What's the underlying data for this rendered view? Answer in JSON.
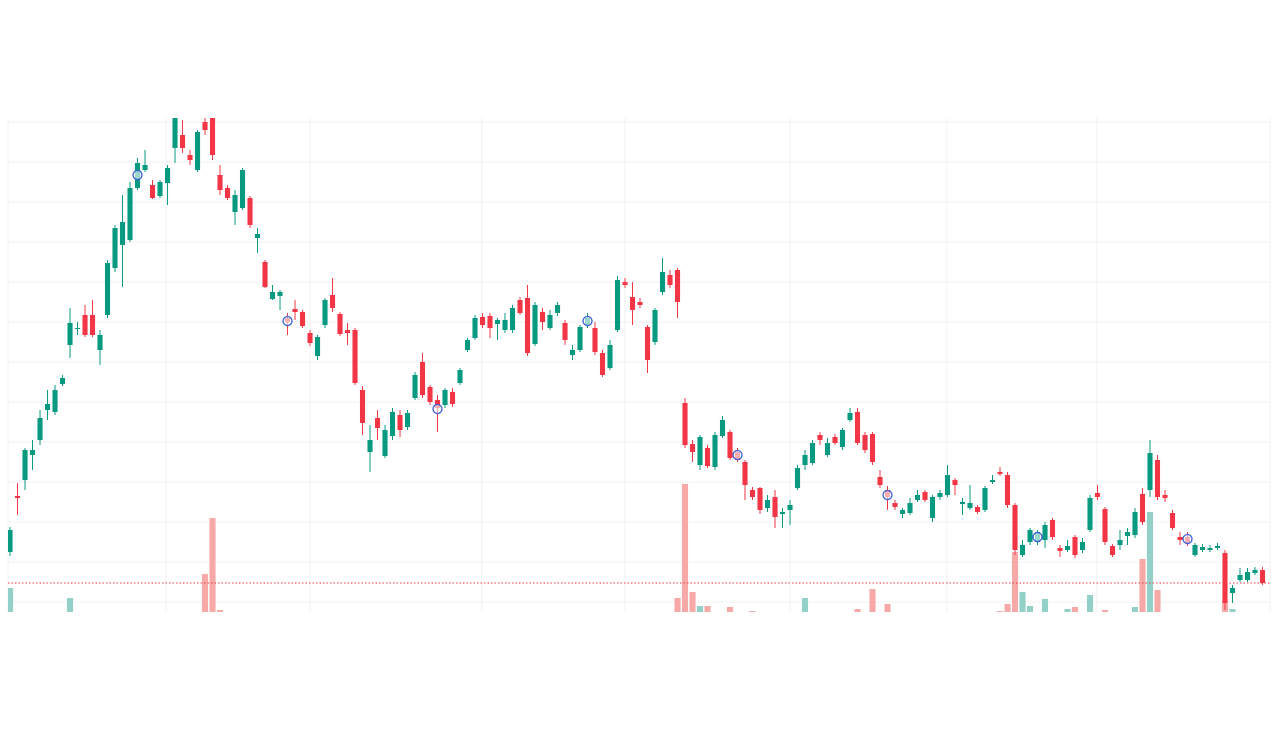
{
  "chart_data": {
    "type": "candlestick",
    "up_color": "#089981",
    "down_color": "#f23645",
    "volume_up_color": "#93d1c8",
    "volume_down_color": "#f7a9a7",
    "marker_color": "#3a5fd9",
    "price_line": true,
    "grid": true,
    "xlim": [
      -0.27,
      168
    ],
    "ylim": [
      90,
      584
    ],
    "yticks": [
      100,
      140,
      180,
      220,
      260,
      300,
      340,
      380,
      420,
      460,
      500,
      540,
      580
    ],
    "xticks": [
      20.8,
      40,
      62.9,
      82,
      104,
      124.9,
      144.9
    ],
    "volume_ylim": [
      0,
      494
    ],
    "open": [
      150,
      206,
      222,
      247,
      262,
      292,
      290,
      318,
      357,
      373,
      387,
      387,
      352,
      387,
      434,
      457,
      462,
      514,
      532,
      517,
      506,
      519,
      554,
      567,
      547,
      532,
      580,
      584,
      527,
      514,
      490,
      494,
      504,
      464,
      440,
      403,
      406,
      384,
      393,
      390,
      369,
      346,
      377,
      407,
      388,
      372,
      372,
      312,
      250,
      284,
      246,
      266,
      287,
      275,
      304,
      340,
      315,
      302,
      297,
      310,
      319,
      352,
      364,
      385,
      386,
      378,
      372,
      372,
      402,
      404,
      358,
      390,
      374,
      389,
      379,
      347,
      352,
      377,
      374,
      349,
      334,
      372,
      420,
      405,
      400,
      375,
      360,
      410,
      427,
      432,
      299,
      258,
      237,
      254,
      235,
      266,
      270,
      250,
      240,
      212,
      214,
      194,
      205,
      188,
      192,
      214,
      237,
      239,
      267,
      247,
      265,
      255,
      282,
      290,
      267,
      268,
      225,
      212,
      199,
      188,
      189,
      202,
      210,
      184,
      205,
      207,
      222,
      198,
      194,
      195,
      192,
      220,
      230,
      227,
      197,
      147,
      160,
      160,
      162,
      182,
      154,
      152,
      165,
      152,
      172,
      209,
      193,
      156,
      157,
      166,
      167,
      208,
      212,
      242,
      207,
      189,
      165,
      165,
      147,
      152,
      152,
      154,
      149,
      109,
      122,
      122,
      129,
      132
    ],
    "high": [
      175,
      219,
      254,
      262,
      292,
      312,
      317,
      327,
      394,
      380,
      397,
      402,
      372,
      442,
      477,
      507,
      520,
      544,
      552,
      522,
      522,
      537,
      590,
      582,
      552,
      572,
      584,
      592,
      537,
      517,
      512,
      534,
      506,
      474,
      442,
      417,
      412,
      389,
      402,
      392,
      372,
      367,
      404,
      424,
      390,
      379,
      374,
      316,
      277,
      292,
      277,
      294,
      292,
      292,
      330,
      349,
      317,
      307,
      314,
      314,
      334,
      364,
      387,
      389,
      389,
      384,
      389,
      397,
      405,
      417,
      400,
      394,
      392,
      400,
      382,
      357,
      377,
      389,
      380,
      352,
      362,
      426,
      424,
      420,
      404,
      377,
      394,
      444,
      432,
      434,
      304,
      262,
      267,
      257,
      270,
      286,
      272,
      254,
      242,
      215,
      215,
      207,
      212,
      194,
      202,
      237,
      252,
      262,
      270,
      264,
      268,
      274,
      294,
      294,
      270,
      270,
      232,
      216,
      202,
      194,
      204,
      212,
      212,
      207,
      212,
      237,
      224,
      204,
      217,
      197,
      216,
      227,
      235,
      230,
      199,
      162,
      174,
      172,
      180,
      184,
      157,
      162,
      167,
      164,
      207,
      217,
      195,
      158,
      172,
      174,
      194,
      214,
      262,
      247,
      212,
      192,
      170,
      170,
      159,
      158,
      157,
      159,
      152,
      117,
      134,
      134,
      135,
      135
    ],
    "low": [
      146,
      187,
      212,
      232,
      257,
      282,
      287,
      316,
      344,
      367,
      365,
      365,
      337,
      384,
      430,
      415,
      460,
      512,
      530,
      503,
      504,
      497,
      539,
      549,
      537,
      530,
      567,
      542,
      507,
      502,
      477,
      492,
      474,
      449,
      414,
      402,
      392,
      367,
      382,
      374,
      356,
      342,
      374,
      390,
      366,
      357,
      317,
      267,
      230,
      262,
      244,
      262,
      265,
      272,
      302,
      304,
      297,
      270,
      294,
      295,
      317,
      350,
      362,
      374,
      364,
      362,
      369,
      369,
      387,
      346,
      356,
      372,
      372,
      386,
      357,
      342,
      350,
      374,
      347,
      325,
      332,
      370,
      414,
      377,
      394,
      329,
      357,
      407,
      414,
      384,
      254,
      240,
      232,
      234,
      232,
      264,
      242,
      240,
      202,
      202,
      188,
      190,
      174,
      174,
      177,
      212,
      232,
      237,
      257,
      245,
      257,
      252,
      280,
      257,
      249,
      237,
      214,
      192,
      192,
      184,
      187,
      200,
      200,
      180,
      202,
      205,
      207,
      187,
      192,
      188,
      190,
      218,
      226,
      194,
      147,
      145,
      157,
      157,
      154,
      162,
      145,
      150,
      144,
      149,
      170,
      202,
      157,
      145,
      152,
      157,
      164,
      177,
      205,
      202,
      200,
      172,
      157,
      156,
      145,
      150,
      150,
      152,
      92,
      99,
      120,
      120,
      127,
      117
    ],
    "close": [
      172,
      204,
      252,
      252,
      284,
      298,
      312,
      324,
      379,
      374,
      367,
      367,
      367,
      439,
      474,
      480,
      514,
      539,
      537,
      504,
      520,
      534,
      584,
      554,
      542,
      570,
      572,
      547,
      512,
      504,
      507,
      532,
      477,
      468,
      415,
      410,
      410,
      380,
      390,
      376,
      359,
      365,
      402,
      394,
      368,
      369,
      319,
      279,
      262,
      274,
      272,
      290,
      272,
      289,
      327,
      307,
      300,
      294,
      312,
      298,
      332,
      362,
      384,
      377,
      374,
      382,
      382,
      394,
      389,
      349,
      397,
      380,
      387,
      397,
      362,
      352,
      375,
      384,
      350,
      327,
      357,
      422,
      417,
      392,
      397,
      342,
      392,
      430,
      417,
      400,
      257,
      250,
      265,
      236,
      267,
      282,
      244,
      242,
      217,
      205,
      192,
      202,
      185,
      190,
      197,
      234,
      247,
      259,
      262,
      259,
      259,
      272,
      289,
      259,
      252,
      240,
      217,
      205,
      195,
      192,
      199,
      207,
      202,
      205,
      209,
      227,
      217,
      200,
      199,
      190,
      214,
      222,
      228,
      197,
      152,
      157,
      172,
      170,
      177,
      165,
      151,
      156,
      147,
      160,
      204,
      205,
      160,
      147,
      162,
      170,
      190,
      180,
      249,
      205,
      204,
      174,
      162,
      159,
      157,
      155,
      154,
      156,
      99,
      114,
      127,
      130,
      132,
      119
    ],
    "volume": [
      24,
      0,
      0,
      0,
      0,
      0,
      0,
      0,
      14,
      0,
      0,
      0,
      0,
      0,
      0,
      0,
      0,
      0,
      0,
      0,
      0,
      0,
      0,
      0,
      0,
      0,
      38,
      94,
      2,
      0,
      0,
      0,
      0,
      0,
      0,
      0,
      0,
      0,
      0,
      0,
      0,
      0,
      0,
      0,
      0,
      0,
      0,
      0,
      0,
      0,
      0,
      0,
      0,
      0,
      0,
      0,
      0,
      0,
      0,
      0,
      0,
      0,
      0,
      0,
      0,
      0,
      0,
      0,
      0,
      0,
      0,
      0,
      0,
      0,
      0,
      0,
      0,
      0,
      0,
      0,
      0,
      0,
      0,
      0,
      0,
      0,
      0,
      0,
      0,
      14,
      128,
      20,
      6,
      6,
      0,
      0,
      5,
      0,
      0,
      1,
      0,
      0,
      0,
      0,
      0,
      0,
      14,
      0,
      0,
      0,
      0,
      0,
      0,
      3,
      0,
      23,
      0,
      8,
      0,
      0,
      0,
      0,
      0,
      0,
      0,
      0,
      0,
      0,
      0,
      0,
      0,
      0,
      1,
      8,
      60,
      20,
      6,
      0,
      13,
      0,
      0,
      3,
      5,
      0,
      17,
      0,
      2,
      0,
      0,
      0,
      5,
      53,
      100,
      22,
      0,
      0,
      0,
      0,
      0,
      0,
      0,
      0,
      10,
      3,
      0,
      0,
      0,
      0
    ],
    "markers": {
      "x": [
        17,
        37,
        57,
        77,
        97,
        117,
        137,
        157
      ],
      "y": [
        527,
        381,
        293,
        381,
        247,
        207,
        165,
        163
      ]
    }
  }
}
